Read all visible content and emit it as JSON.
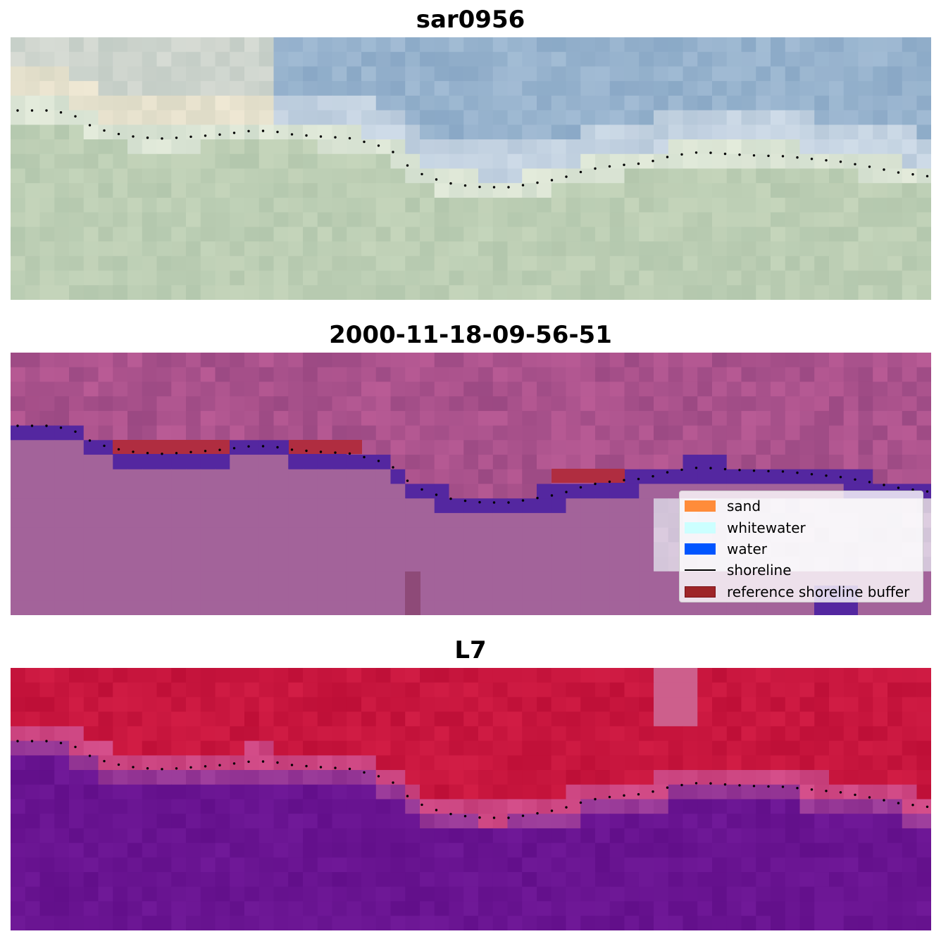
{
  "panels": {
    "rgb": {
      "title": "sar0956"
    },
    "classified": {
      "title": "2000-11-18-09-56-51"
    },
    "index": {
      "title": "L7"
    }
  },
  "legend": {
    "items": [
      {
        "label": "sand",
        "color": "#ff8c3a"
      },
      {
        "label": "whitewater",
        "color": "#ccffff"
      },
      {
        "label": "water",
        "color": "#0055ff"
      },
      {
        "label": "shoreline",
        "color": "#000000"
      },
      {
        "label": "reference shoreline buffer",
        "color": "#9e2428",
        "edge": "#7a1016"
      }
    ]
  },
  "colors": {
    "water_class": "#5427a0",
    "buffer": "#b02d40",
    "sand_class": "#a3639a",
    "index_high": "#c8143c",
    "index_low": "#6a1290"
  }
}
